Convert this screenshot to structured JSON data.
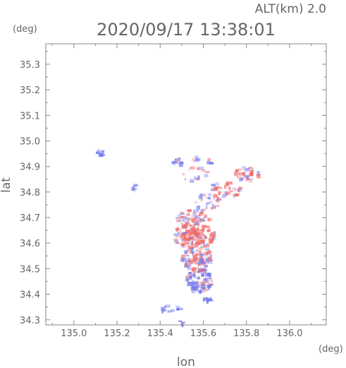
{
  "header": {
    "alt_label": "ALT(km)  2.0",
    "timestamp": "2020/09/17 13:38:01"
  },
  "chart_data": {
    "type": "heatmap",
    "title": "2020/09/17 13:38:01",
    "xlabel": "lon",
    "ylabel": "lat",
    "xunit": "(deg)",
    "yunit": "(deg)",
    "xlim": [
      134.87,
      136.17
    ],
    "ylim": [
      34.28,
      35.38
    ],
    "xticks": [
      135.0,
      135.2,
      135.4,
      135.6,
      135.8,
      136.0
    ],
    "xtick_labels": [
      "135.0",
      "135.2",
      "135.4",
      "135.6",
      "135.8",
      "136.0"
    ],
    "yticks": [
      34.3,
      34.4,
      34.5,
      34.6,
      34.7,
      34.8,
      34.9,
      35.0,
      35.1,
      35.2,
      35.3
    ],
    "ytick_labels": [
      "34.3",
      "34.4",
      "34.5",
      "34.6",
      "34.7",
      "34.8",
      "34.9",
      "35.0",
      "35.1",
      "35.2",
      "35.3"
    ],
    "grid": false,
    "colors": {
      "positive": "#f06a6a",
      "negative": "#6f78f0",
      "axis": "#888888"
    },
    "clusters": [
      {
        "lon": 135.126,
        "lat": 34.953,
        "rlon": 0.018,
        "rlat": 0.014,
        "n": 10,
        "bias": -0.9
      },
      {
        "lon": 135.285,
        "lat": 34.815,
        "rlon": 0.012,
        "rlat": 0.02,
        "n": 8,
        "bias": -0.3
      },
      {
        "lon": 135.485,
        "lat": 34.92,
        "rlon": 0.03,
        "rlat": 0.012,
        "n": 14,
        "bias": -0.4
      },
      {
        "lon": 135.565,
        "lat": 34.93,
        "rlon": 0.015,
        "rlat": 0.01,
        "n": 6,
        "bias": 0.1
      },
      {
        "lon": 135.63,
        "lat": 34.918,
        "rlon": 0.012,
        "rlat": 0.012,
        "n": 6,
        "bias": -0.2
      },
      {
        "lon": 135.56,
        "lat": 34.87,
        "rlon": 0.06,
        "rlat": 0.03,
        "n": 18,
        "bias": 0.0
      },
      {
        "lon": 135.8,
        "lat": 34.87,
        "rlon": 0.06,
        "rlat": 0.03,
        "n": 40,
        "bias": 0.3
      },
      {
        "lon": 135.7,
        "lat": 34.81,
        "rlon": 0.07,
        "rlat": 0.04,
        "n": 40,
        "bias": 0.2
      },
      {
        "lon": 135.62,
        "lat": 34.76,
        "rlon": 0.06,
        "rlat": 0.04,
        "n": 30,
        "bias": -0.1
      },
      {
        "lon": 135.55,
        "lat": 34.7,
        "rlon": 0.08,
        "rlat": 0.03,
        "n": 60,
        "bias": 0.1
      },
      {
        "lon": 135.56,
        "lat": 34.63,
        "rlon": 0.1,
        "rlat": 0.05,
        "n": 160,
        "bias": 0.4
      },
      {
        "lon": 135.57,
        "lat": 34.54,
        "rlon": 0.07,
        "rlat": 0.05,
        "n": 110,
        "bias": 0.0
      },
      {
        "lon": 135.58,
        "lat": 34.45,
        "rlon": 0.06,
        "rlat": 0.05,
        "n": 90,
        "bias": -0.3
      },
      {
        "lon": 135.44,
        "lat": 34.345,
        "rlon": 0.06,
        "rlat": 0.012,
        "n": 12,
        "bias": -0.4
      },
      {
        "lon": 135.5,
        "lat": 34.29,
        "rlon": 0.01,
        "rlat": 0.01,
        "n": 5,
        "bias": -0.5
      },
      {
        "lon": 135.62,
        "lat": 34.38,
        "rlon": 0.02,
        "rlat": 0.015,
        "n": 8,
        "bias": -0.5
      }
    ]
  }
}
